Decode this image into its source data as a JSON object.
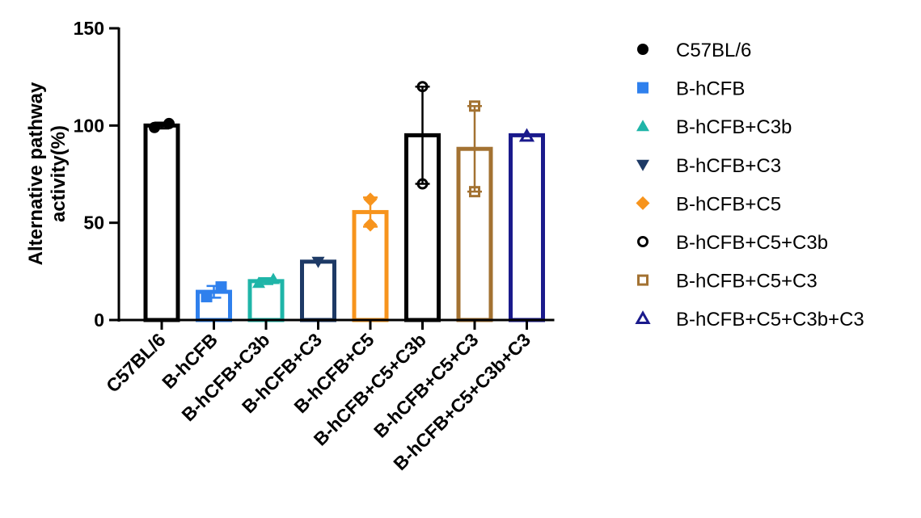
{
  "chart_data": {
    "type": "bar",
    "title": "",
    "xlabel": "",
    "ylabel": "Alternative pathway\nactivity(%)",
    "ylim": [
      0,
      150
    ],
    "yticks": [
      0,
      50,
      100,
      150
    ],
    "grid": false,
    "legend_position": "right",
    "categories": [
      "C57BL/6",
      "B-hCFB",
      "B-hCFB+C3b",
      "B-hCFB+C3",
      "B-hCFB+C5",
      "B-hCFB+C5+C3b",
      "B-hCFB+C5+C3",
      "B-hCFB+C5+C3b+C3"
    ],
    "series": [
      {
        "name": "C57BL/6",
        "mean": 100,
        "error": 1.5,
        "points": [
          99,
          101
        ],
        "color": "#000000",
        "marker": "circle-filled"
      },
      {
        "name": "B-hCFB",
        "mean": 14.5,
        "error": 3,
        "points": [
          12,
          17
        ],
        "color": "#2F80ED",
        "marker": "square-filled"
      },
      {
        "name": "B-hCFB+C3b",
        "mean": 20,
        "error": 1.5,
        "points": [
          19,
          21
        ],
        "color": "#1FB5A8",
        "marker": "triangle-up-filled"
      },
      {
        "name": "B-hCFB+C3",
        "mean": 30,
        "error": 0,
        "points": [
          30
        ],
        "color": "#1E3A66",
        "marker": "triangle-down-filled"
      },
      {
        "name": "B-hCFB+C5",
        "mean": 55.5,
        "error": 7.5,
        "points": [
          49,
          62
        ],
        "color": "#F7941D",
        "marker": "diamond-filled"
      },
      {
        "name": "B-hCFB+C5+C3b",
        "mean": 95,
        "error": 25,
        "points": [
          70,
          120
        ],
        "color": "#000000",
        "marker": "circle-open"
      },
      {
        "name": "B-hCFB+C5+C3",
        "mean": 88,
        "error": 22,
        "points": [
          66,
          110
        ],
        "color": "#A37232",
        "marker": "square-open"
      },
      {
        "name": "B-hCFB+C5+C3b+C3",
        "mean": 95,
        "error": 0,
        "points": [
          94.5
        ],
        "color": "#1A1A8C",
        "marker": "triangle-up-open"
      }
    ]
  },
  "legend": [
    {
      "label": "C57BL/6"
    },
    {
      "label": "B-hCFB"
    },
    {
      "label": "B-hCFB+C3b"
    },
    {
      "label": "B-hCFB+C3"
    },
    {
      "label": "B-hCFB+C5"
    },
    {
      "label": "B-hCFB+C5+C3b"
    },
    {
      "label": "B-hCFB+C5+C3"
    },
    {
      "label": "B-hCFB+C5+C3b+C3"
    }
  ]
}
